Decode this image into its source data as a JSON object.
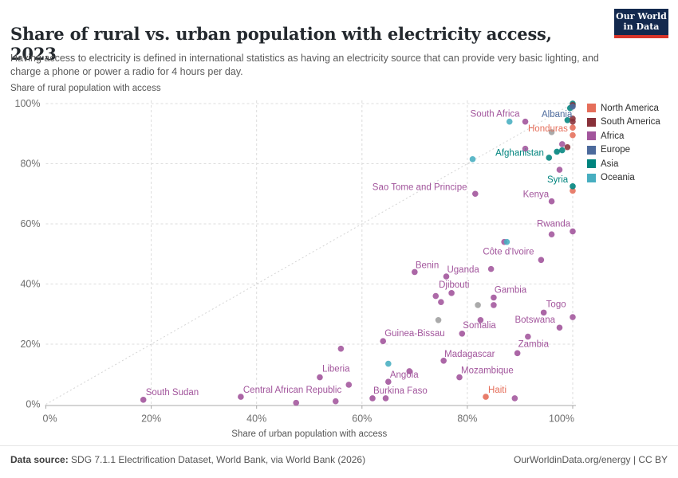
{
  "header": {
    "title": "Share of rural vs. urban population with electricity access, 2023",
    "subtitle": "Having access to electricity is defined in international statistics as having an electricity source that can provide very basic lighting, and charge a phone or power a radio for 4 hours per day."
  },
  "logo": {
    "line1": "Our World",
    "line2": "in Data",
    "bg_color": "#13294e",
    "accent_color": "#d8352a"
  },
  "axes": {
    "y_label": "Share of rural population with access",
    "x_label": "Share of urban population with access",
    "x_ticks": [
      "0%",
      "20%",
      "40%",
      "60%",
      "80%",
      "100%"
    ],
    "y_ticks": [
      "0%",
      "20%",
      "40%",
      "60%",
      "80%",
      "100%"
    ]
  },
  "legend": {
    "items": [
      {
        "label": "North America",
        "color": "#E56E5A"
      },
      {
        "label": "South America",
        "color": "#883039"
      },
      {
        "label": "Africa",
        "color": "#A2559C"
      },
      {
        "label": "Europe",
        "color": "#4C6A9C"
      },
      {
        "label": "Asia",
        "color": "#00847E"
      },
      {
        "label": "Oceania",
        "color": "#47AEC0"
      }
    ]
  },
  "chart_data": {
    "type": "scatter",
    "title": "Share of rural vs. urban population with electricity access, 2023",
    "xlabel": "Share of urban population with access",
    "ylabel": "Share of rural population with access",
    "xlim": [
      0,
      100
    ],
    "ylim": [
      0,
      100
    ],
    "unit": "%",
    "grid": "dashed",
    "diagonal_line": true,
    "legend_position": "right",
    "continent_colors": {
      "North America": "#E56E5A",
      "South America": "#883039",
      "Africa": "#A2559C",
      "Europe": "#4C6A9C",
      "Asia": "#00847E",
      "Oceania": "#47AEC0",
      "Other": "#9E9E9E"
    },
    "series": [
      {
        "name": "South Africa",
        "continent": "Africa",
        "urban": 91,
        "rural": 94,
        "label_dx": -69,
        "label_dy": -6
      },
      {
        "name": "Albania",
        "continent": "Europe",
        "urban": 100,
        "rural": 99,
        "label_dx": -39,
        "label_dy": 13
      },
      {
        "name": "Honduras",
        "continent": "North America",
        "urban": 100,
        "rural": 92,
        "label_dx": -56,
        "label_dy": 5
      },
      {
        "name": "Afghanistan",
        "continent": "Asia",
        "urban": 97,
        "rural": 84,
        "label_dx": -77,
        "label_dy": 5
      },
      {
        "name": "Syria",
        "continent": "Asia",
        "urban": 100,
        "rural": 72.5,
        "label_dx": -32,
        "label_dy": -5
      },
      {
        "name": "Kenya",
        "continent": "Africa",
        "urban": 96,
        "rural": 67.5,
        "label_dx": -36,
        "label_dy": -5
      },
      {
        "name": "Sao Tome and Principe",
        "continent": "Africa",
        "urban": 81.5,
        "rural": 70,
        "label_dx": -129,
        "label_dy": -5
      },
      {
        "name": "Rwanda",
        "continent": "Africa",
        "urban": 100,
        "rural": 57.5,
        "label_dx": -45,
        "label_dy": -6
      },
      {
        "name": "Côte d'Ivoire",
        "continent": "Africa",
        "urban": 94,
        "rural": 48,
        "label_dx": -73,
        "label_dy": -7
      },
      {
        "name": "Benin",
        "continent": "Africa",
        "urban": 70,
        "rural": 44,
        "label_dx": 1,
        "label_dy": -5
      },
      {
        "name": "Uganda",
        "continent": "Africa",
        "urban": 76,
        "rural": 42.5,
        "label_dx": 1,
        "label_dy": -5
      },
      {
        "name": "Djibouti",
        "continent": "Africa",
        "urban": 77,
        "rural": 37,
        "label_dx": -16,
        "label_dy": -7
      },
      {
        "name": "Gambia",
        "continent": "Africa",
        "urban": 85,
        "rural": 35.5,
        "label_dx": 1,
        "label_dy": -6
      },
      {
        "name": "Togo",
        "continent": "Africa",
        "urban": 94.5,
        "rural": 30.5,
        "label_dx": 3,
        "label_dy": -7
      },
      {
        "name": "Somalia",
        "continent": "Africa",
        "urban": 79,
        "rural": 23.5,
        "label_dx": 1,
        "label_dy": -7
      },
      {
        "name": "Botswana",
        "continent": "Africa",
        "urban": 97.5,
        "rural": 25.5,
        "label_dx": -56,
        "label_dy": -6
      },
      {
        "name": "Zambia",
        "continent": "Africa",
        "urban": 89.5,
        "rural": 17,
        "label_dx": 1,
        "label_dy": -8
      },
      {
        "name": "Guinea-Bissau",
        "continent": "Africa",
        "urban": 64,
        "rural": 21,
        "label_dx": 2,
        "label_dy": -6
      },
      {
        "name": "Madagascar",
        "continent": "Africa",
        "urban": 75.5,
        "rural": 14.5,
        "label_dx": 1,
        "label_dy": -5
      },
      {
        "name": "Mozambique",
        "continent": "Africa",
        "urban": 78.5,
        "rural": 9,
        "label_dx": 2,
        "label_dy": -5
      },
      {
        "name": "Liberia",
        "continent": "Africa",
        "urban": 52,
        "rural": 9,
        "label_dx": 3,
        "label_dy": -7
      },
      {
        "name": "Angola",
        "continent": "Africa",
        "urban": 65,
        "rural": 7.5,
        "label_dx": 2,
        "label_dy": -5
      },
      {
        "name": "Burkina Faso",
        "continent": "Africa",
        "urban": 62,
        "rural": 2,
        "label_dx": 1,
        "label_dy": -6
      },
      {
        "name": "Haiti",
        "continent": "North America",
        "urban": 83.5,
        "rural": 2.5,
        "label_dx": 3,
        "label_dy": -5
      },
      {
        "name": "Central African Republic",
        "continent": "Africa",
        "urban": 37,
        "rural": 2.5,
        "label_dx": 3,
        "label_dy": -5
      },
      {
        "name": "South Sudan",
        "continent": "Africa",
        "urban": 18.5,
        "rural": 1.5,
        "label_dx": 3,
        "label_dy": -6
      }
    ],
    "unlabeled_points": [
      {
        "continent": "Asia",
        "urban": 100,
        "rural": 100
      },
      {
        "continent": "South America",
        "urban": 100,
        "rural": 99.5
      },
      {
        "continent": "Asia",
        "urban": 99.5,
        "rural": 98.5
      },
      {
        "continent": "Oceania",
        "urban": 88,
        "rural": 94
      },
      {
        "continent": "Asia",
        "urban": 99,
        "rural": 94.5
      },
      {
        "continent": "South America",
        "urban": 100,
        "rural": 95
      },
      {
        "continent": "South America",
        "urban": 100,
        "rural": 94
      },
      {
        "continent": "North America",
        "urban": 100,
        "rural": 89.5
      },
      {
        "continent": "Other",
        "urban": 96,
        "rural": 90.5
      },
      {
        "continent": "Africa",
        "urban": 91,
        "rural": 85
      },
      {
        "continent": "Africa",
        "urban": 98,
        "rural": 86.5
      },
      {
        "continent": "South America",
        "urban": 99,
        "rural": 85.5
      },
      {
        "continent": "Asia",
        "urban": 98,
        "rural": 84.5
      },
      {
        "continent": "Asia",
        "urban": 95.5,
        "rural": 82
      },
      {
        "continent": "Oceania",
        "urban": 81,
        "rural": 81.5
      },
      {
        "continent": "Africa",
        "urban": 97.5,
        "rural": 78
      },
      {
        "continent": "North America",
        "urban": 100,
        "rural": 71
      },
      {
        "continent": "Africa",
        "urban": 96,
        "rural": 56.5
      },
      {
        "continent": "Africa",
        "urban": 87,
        "rural": 54
      },
      {
        "continent": "Oceania",
        "urban": 87.5,
        "rural": 54
      },
      {
        "continent": "Africa",
        "urban": 84.5,
        "rural": 45
      },
      {
        "continent": "Africa",
        "urban": 74,
        "rural": 36
      },
      {
        "continent": "Africa",
        "urban": 75,
        "rural": 34
      },
      {
        "continent": "Other",
        "urban": 82,
        "rural": 33
      },
      {
        "continent": "Africa",
        "urban": 85,
        "rural": 33
      },
      {
        "continent": "Other",
        "urban": 74.5,
        "rural": 28
      },
      {
        "continent": "Africa",
        "urban": 82.5,
        "rural": 28
      },
      {
        "continent": "Africa",
        "urban": 100,
        "rural": 29
      },
      {
        "continent": "Africa",
        "urban": 91.5,
        "rural": 22.5
      },
      {
        "continent": "Africa",
        "urban": 56,
        "rural": 18.5
      },
      {
        "continent": "Oceania",
        "urban": 65,
        "rural": 13.5
      },
      {
        "continent": "Africa",
        "urban": 69,
        "rural": 11
      },
      {
        "continent": "Africa",
        "urban": 57.5,
        "rural": 6.5
      },
      {
        "continent": "Africa",
        "urban": 64.5,
        "rural": 2
      },
      {
        "continent": "Africa",
        "urban": 47.5,
        "rural": 0.5
      },
      {
        "continent": "Africa",
        "urban": 55,
        "rural": 1
      },
      {
        "continent": "Africa",
        "urban": 89,
        "rural": 2
      }
    ]
  },
  "footer": {
    "datasource_label": "Data source:",
    "datasource_text": " SDG 7.1.1 Electrification Dataset, World Bank, via World Bank (2026)",
    "link": "OurWorldinData.org/energy",
    "separator": " | ",
    "license": "CC BY"
  }
}
